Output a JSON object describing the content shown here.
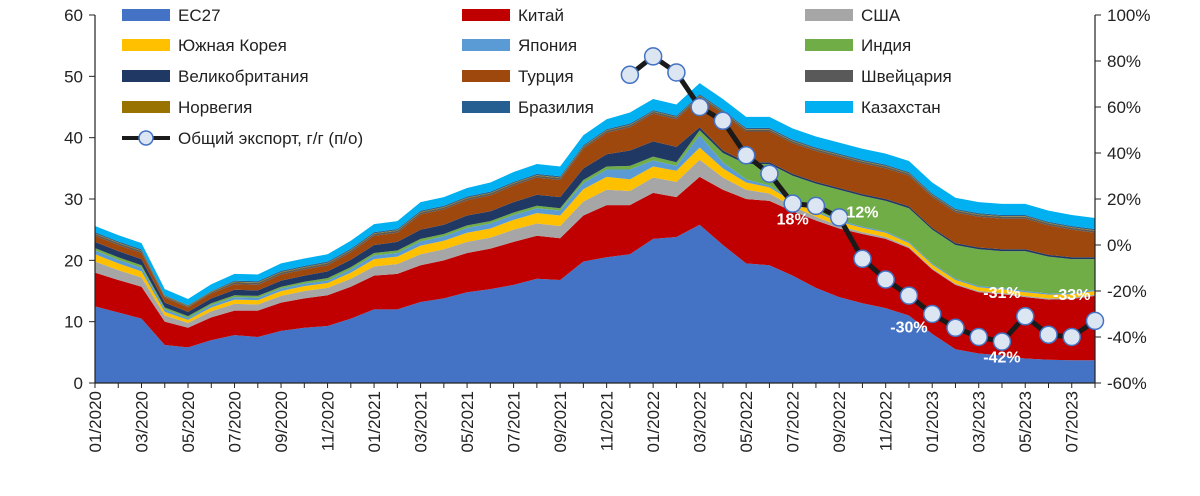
{
  "chart_data": {
    "type": "area",
    "title": "",
    "xlabel": "",
    "ylabel": "",
    "ylim": [
      0,
      60
    ],
    "y_ticks": [
      "0",
      "10",
      "20",
      "30",
      "40",
      "50",
      "60"
    ],
    "y2lim": [
      -60,
      100
    ],
    "y2_ticks": [
      "-60%",
      "-40%",
      "-20%",
      "0%",
      "20%",
      "40%",
      "60%",
      "80%",
      "100%"
    ],
    "x": [
      "01/2020",
      "02/2020",
      "03/2020",
      "04/2020",
      "05/2020",
      "06/2020",
      "07/2020",
      "08/2020",
      "09/2020",
      "10/2020",
      "11/2020",
      "12/2020",
      "01/2021",
      "02/2021",
      "03/2021",
      "04/2021",
      "05/2021",
      "06/2021",
      "07/2021",
      "08/2021",
      "09/2021",
      "10/2021",
      "11/2021",
      "12/2021",
      "01/2022",
      "02/2022",
      "03/2022",
      "04/2022",
      "05/2022",
      "06/2022",
      "07/2022",
      "08/2022",
      "09/2022",
      "10/2022",
      "11/2022",
      "12/2022",
      "01/2023",
      "02/2023",
      "03/2023",
      "04/2023",
      "05/2023",
      "06/2023",
      "07/2023",
      "08/2023"
    ],
    "x_tick_labels": [
      "01/2020",
      "03/2020",
      "05/2020",
      "07/2020",
      "09/2020",
      "11/2020",
      "01/2021",
      "03/2021",
      "05/2021",
      "07/2021",
      "09/2021",
      "11/2021",
      "01/2022",
      "03/2022",
      "05/2022",
      "07/2022",
      "09/2022",
      "11/2022",
      "01/2023",
      "03/2023",
      "05/2023",
      "07/2023"
    ],
    "grid": false,
    "legend_position": "top",
    "series": [
      {
        "name": "ЕС27",
        "color": "#4472C4",
        "axis": "left",
        "values": [
          12.5,
          11.5,
          10.5,
          6.2,
          5.8,
          7.0,
          7.8,
          7.5,
          8.5,
          9.0,
          9.3,
          10.5,
          12.0,
          12.0,
          13.2,
          13.8,
          14.8,
          15.3,
          16.0,
          17.0,
          16.8,
          19.8,
          20.5,
          21.0,
          23.5,
          23.8,
          25.8,
          22.5,
          19.5,
          19.2,
          17.5,
          15.5,
          14.0,
          13.0,
          12.2,
          11.0,
          8.0,
          5.5,
          4.8,
          4.5,
          4.0,
          3.8,
          3.7,
          3.7
        ]
      },
      {
        "name": "Китай",
        "color": "#C00000",
        "axis": "left",
        "values": [
          5.5,
          5.3,
          5.2,
          3.8,
          3.2,
          3.7,
          4.0,
          4.3,
          4.6,
          4.8,
          5.0,
          5.2,
          5.5,
          5.8,
          6.0,
          6.2,
          6.4,
          6.6,
          7.0,
          7.0,
          6.8,
          7.5,
          8.5,
          8.0,
          7.5,
          6.5,
          7.8,
          9.0,
          10.5,
          10.5,
          10.5,
          11.0,
          11.2,
          11.3,
          11.3,
          11.0,
          10.5,
          10.5,
          10.0,
          10.0,
          10.0,
          9.8,
          10.0,
          10.5
        ]
      },
      {
        "name": "США",
        "color": "#A6A6A6",
        "axis": "left",
        "values": [
          1.8,
          1.6,
          1.5,
          1.0,
          0.8,
          1.0,
          1.1,
          1.0,
          1.1,
          1.2,
          1.2,
          1.3,
          1.5,
          1.6,
          1.8,
          1.8,
          1.8,
          1.8,
          2.0,
          2.0,
          2.0,
          2.3,
          2.5,
          2.3,
          2.5,
          2.5,
          2.8,
          2.0,
          1.5,
          1.2,
          0.8,
          0.6,
          0.4,
          0.3,
          0.3,
          0.2,
          0.2,
          0.2,
          0.2,
          0.2,
          0.2,
          0.2,
          0.2,
          0.2
        ]
      },
      {
        "name": "Южная Корея",
        "color": "#FFC000",
        "axis": "left",
        "values": [
          1.2,
          1.1,
          1.0,
          0.6,
          0.5,
          0.6,
          0.7,
          0.7,
          0.8,
          0.8,
          0.8,
          1.0,
          1.2,
          1.2,
          1.4,
          1.4,
          1.5,
          1.5,
          1.6,
          1.7,
          1.7,
          2.0,
          2.1,
          1.9,
          1.8,
          1.8,
          2.0,
          1.5,
          1.2,
          1.0,
          0.8,
          0.7,
          0.7,
          0.7,
          0.7,
          0.6,
          0.6,
          0.6,
          0.6,
          0.6,
          0.6,
          0.6,
          0.6,
          0.6
        ]
      },
      {
        "name": "Япония",
        "color": "#5B9BD5",
        "axis": "left",
        "values": [
          0.6,
          0.6,
          0.6,
          0.4,
          0.3,
          0.4,
          0.4,
          0.4,
          0.4,
          0.4,
          0.4,
          0.5,
          0.6,
          0.6,
          0.7,
          0.7,
          0.8,
          0.8,
          0.8,
          0.8,
          0.8,
          1.0,
          1.2,
          1.6,
          1.0,
          0.8,
          2.0,
          1.0,
          0.5,
          0.3,
          0.2,
          0.2,
          0.2,
          0.2,
          0.2,
          0.2,
          0.2,
          0.2,
          0.2,
          0.2,
          0.2,
          0.2,
          0.2,
          0.2
        ]
      },
      {
        "name": "Индия",
        "color": "#70AD47",
        "axis": "left",
        "values": [
          0.4,
          0.4,
          0.4,
          0.3,
          0.3,
          0.3,
          0.3,
          0.3,
          0.3,
          0.3,
          0.4,
          0.4,
          0.4,
          0.4,
          0.4,
          0.4,
          0.4,
          0.4,
          0.4,
          0.4,
          0.4,
          0.5,
          0.5,
          0.6,
          0.6,
          0.6,
          0.8,
          1.5,
          2.5,
          3.5,
          4.0,
          4.5,
          5.0,
          5.0,
          5.0,
          5.5,
          5.5,
          5.5,
          6.0,
          6.0,
          6.5,
          6.0,
          5.5,
          5.0
        ]
      },
      {
        "name": "Великобритания",
        "color": "#203864",
        "axis": "left",
        "values": [
          1.0,
          1.0,
          1.0,
          0.8,
          0.7,
          0.8,
          0.9,
          0.9,
          1.0,
          1.0,
          1.1,
          1.2,
          1.3,
          1.4,
          1.5,
          1.5,
          1.6,
          1.6,
          1.7,
          1.8,
          1.8,
          1.9,
          2.0,
          2.5,
          2.5,
          2.5,
          0.5,
          0.4,
          0.3,
          0.3,
          0.3,
          0.3,
          0.3,
          0.3,
          0.3,
          0.3,
          0.3,
          0.3,
          0.3,
          0.3,
          0.3,
          0.3,
          0.3,
          0.3
        ]
      },
      {
        "name": "Турция",
        "color": "#9E480E",
        "axis": "left",
        "values": [
          1.0,
          1.0,
          1.0,
          0.8,
          0.7,
          0.8,
          0.9,
          0.9,
          1.0,
          1.0,
          1.0,
          1.2,
          1.5,
          1.5,
          2.5,
          2.5,
          2.5,
          2.6,
          2.7,
          2.8,
          2.8,
          3.2,
          3.5,
          3.8,
          4.5,
          4.5,
          4.8,
          6.0,
          5.0,
          5.0,
          5.0,
          5.0,
          5.0,
          5.0,
          5.0,
          5.0,
          5.0,
          5.0,
          5.0,
          5.0,
          5.0,
          4.8,
          4.5,
          4.0
        ]
      },
      {
        "name": "Швейцария",
        "color": "#595959",
        "axis": "left",
        "values": [
          0.3,
          0.3,
          0.3,
          0.2,
          0.2,
          0.2,
          0.3,
          0.3,
          0.3,
          0.3,
          0.3,
          0.3,
          0.3,
          0.3,
          0.3,
          0.3,
          0.3,
          0.3,
          0.3,
          0.3,
          0.3,
          0.3,
          0.3,
          0.3,
          0.3,
          0.3,
          0.3,
          0.3,
          0.3,
          0.3,
          0.3,
          0.3,
          0.3,
          0.3,
          0.3,
          0.3,
          0.3,
          0.3,
          0.3,
          0.3,
          0.3,
          0.3,
          0.3,
          0.3
        ]
      },
      {
        "name": "Норвегия",
        "color": "#997300",
        "axis": "left",
        "values": [
          0.1,
          0.1,
          0.1,
          0.1,
          0.1,
          0.1,
          0.1,
          0.1,
          0.1,
          0.1,
          0.1,
          0.1,
          0.1,
          0.1,
          0.1,
          0.1,
          0.1,
          0.1,
          0.1,
          0.1,
          0.1,
          0.1,
          0.1,
          0.1,
          0.1,
          0.1,
          0.1,
          0.1,
          0.1,
          0.1,
          0.1,
          0.1,
          0.1,
          0.1,
          0.1,
          0.1,
          0.1,
          0.1,
          0.1,
          0.1,
          0.1,
          0.1,
          0.1,
          0.1
        ]
      },
      {
        "name": "Бразилия",
        "color": "#255E91",
        "axis": "left",
        "values": [
          0.2,
          0.2,
          0.2,
          0.1,
          0.1,
          0.1,
          0.2,
          0.2,
          0.2,
          0.2,
          0.2,
          0.2,
          0.2,
          0.2,
          0.2,
          0.2,
          0.2,
          0.2,
          0.2,
          0.2,
          0.2,
          0.2,
          0.2,
          0.2,
          0.2,
          0.2,
          0.2,
          0.2,
          0.2,
          0.2,
          0.2,
          0.2,
          0.2,
          0.2,
          0.2,
          0.2,
          0.2,
          0.2,
          0.2,
          0.2,
          0.2,
          0.2,
          0.2,
          0.2
        ]
      },
      {
        "name": "Казахстан",
        "color": "#00B0F0",
        "axis": "left",
        "values": [
          1.0,
          1.0,
          1.0,
          1.0,
          1.0,
          1.1,
          1.1,
          1.1,
          1.2,
          1.2,
          1.2,
          1.3,
          1.3,
          1.3,
          1.4,
          1.4,
          1.4,
          1.5,
          1.6,
          1.6,
          1.6,
          1.6,
          1.6,
          1.8,
          1.8,
          1.8,
          1.8,
          1.8,
          1.8,
          1.8,
          1.8,
          1.8,
          1.8,
          1.8,
          1.8,
          1.8,
          1.8,
          1.8,
          1.8,
          1.8,
          1.8,
          1.8,
          1.8,
          1.8
        ]
      }
    ],
    "line_series": {
      "name": "Общий экспорт, г/г (п/о)",
      "axis": "right",
      "line_color": "#1a1a1a",
      "marker_fill": "#dce6f2",
      "marker_stroke": "#4472C4",
      "x": [
        "12/2021",
        "01/2022",
        "02/2022",
        "03/2022",
        "04/2022",
        "05/2022",
        "06/2022",
        "07/2022",
        "08/2022",
        "09/2022",
        "10/2022",
        "11/2022",
        "12/2022",
        "01/2023",
        "02/2023",
        "03/2023",
        "04/2023",
        "05/2023",
        "06/2023",
        "07/2023",
        "08/2023"
      ],
      "values": [
        74,
        82,
        75,
        60,
        54,
        39,
        31,
        18,
        17,
        12,
        -6,
        -15,
        -22,
        -30,
        -36,
        -40,
        -42,
        -31,
        -39,
        -40,
        -33
      ]
    },
    "annotations": [
      {
        "text": "18%",
        "x": "07/2022",
        "y2": 9
      },
      {
        "text": "12%",
        "x": "10/2022",
        "y2": 12
      },
      {
        "text": "-30%",
        "x": "12/2022",
        "y2": -38
      },
      {
        "text": "-31%",
        "x": "04/2023",
        "y2": -23
      },
      {
        "text": "-42%",
        "x": "04/2023",
        "y2": -51
      },
      {
        "text": "-33%",
        "x": "07/2023",
        "y2": -24
      }
    ]
  }
}
